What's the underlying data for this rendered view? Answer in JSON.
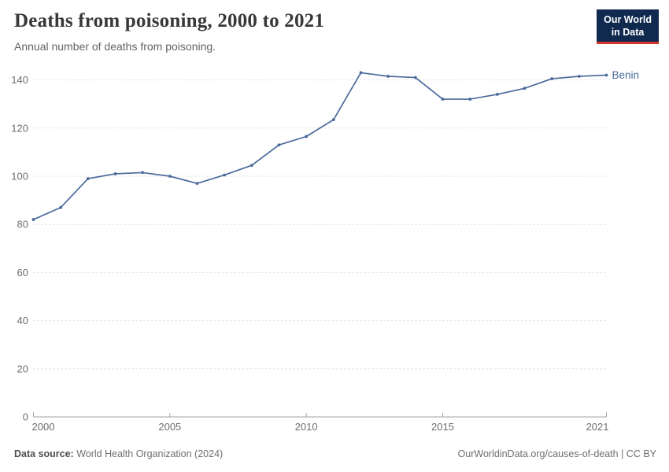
{
  "header": {
    "title": "Deaths from poisoning, 2000 to 2021",
    "subtitle": "Annual number of deaths from poisoning.",
    "logo": {
      "line1": "Our World",
      "line2": "in Data",
      "bg_color": "#0f2a4e",
      "accent_color": "#d8352f"
    }
  },
  "chart_data": {
    "type": "line",
    "title": "Deaths from poisoning, 2000 to 2021",
    "x": [
      2000,
      2001,
      2002,
      2003,
      2004,
      2005,
      2006,
      2007,
      2008,
      2009,
      2010,
      2011,
      2012,
      2013,
      2014,
      2015,
      2016,
      2017,
      2018,
      2019,
      2020,
      2021
    ],
    "series": [
      {
        "name": "Benin",
        "color": "#4C6A9C",
        "values": [
          82,
          87,
          99,
          101,
          101.5,
          100,
          97,
          100.5,
          104.5,
          113,
          116.5,
          123.5,
          143,
          141.5,
          141,
          132,
          132,
          134,
          136.5,
          140.5,
          141.5,
          142
        ]
      }
    ],
    "xlabel": "",
    "ylabel": "",
    "ylim": [
      0,
      150
    ],
    "yticks": [
      0,
      20,
      40,
      60,
      80,
      100,
      120,
      140
    ],
    "xticks": [
      2000,
      2005,
      2010,
      2015,
      2021
    ],
    "grid": "horizontal-dashed",
    "grid_color": "#dadada",
    "axis_color": "#a3a3a3",
    "tick_label_color": "#6e6e6e",
    "legend": "end-of-line-label"
  },
  "footer": {
    "source_label": "Data source:",
    "source_text": " World Health Organization (2024)",
    "credit": "OurWorldinData.org/causes-of-death | CC BY"
  }
}
